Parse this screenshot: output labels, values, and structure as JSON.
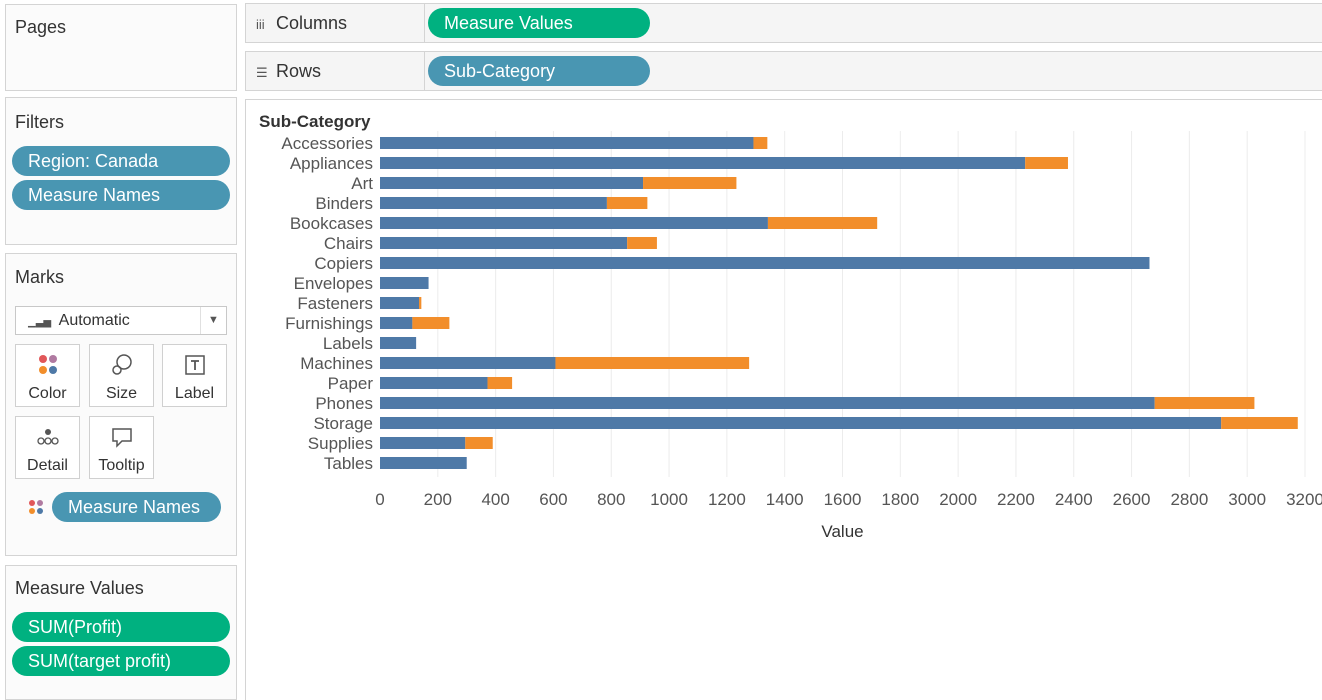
{
  "pages": {
    "title": "Pages"
  },
  "filters": {
    "title": "Filters",
    "items": [
      "Region: Canada",
      "Measure Names"
    ]
  },
  "marks": {
    "title": "Marks",
    "mark_type": "Automatic",
    "buttons": [
      "Color",
      "Size",
      "Label",
      "Detail",
      "Tooltip"
    ],
    "color_field": "Measure Names"
  },
  "measure_values": {
    "title": "Measure Values",
    "items": [
      "SUM(Profit)",
      "SUM(target profit)"
    ]
  },
  "shelves": {
    "columns": {
      "label": "Columns",
      "pill": "Measure Values"
    },
    "rows": {
      "label": "Rows",
      "pill": "Sub-Category"
    }
  },
  "colors": {
    "profit": "#4e79a7",
    "target": "#f28e2b",
    "green_pill": "#00b180",
    "blue_pill": "#4996b2"
  },
  "chart_data": {
    "type": "bar",
    "orientation": "horizontal",
    "stacked": true,
    "row_header": "Sub-Category",
    "categories": [
      "Accessories",
      "Appliances",
      "Art",
      "Binders",
      "Bookcases",
      "Chairs",
      "Copiers",
      "Envelopes",
      "Fasteners",
      "Furnishings",
      "Labels",
      "Machines",
      "Paper",
      "Phones",
      "Storage",
      "Supplies",
      "Tables"
    ],
    "series": [
      {
        "values": [
          1292,
          2232,
          910,
          785,
          1342,
          855,
          2662,
          168,
          135,
          112,
          125,
          607,
          372,
          2680,
          2910,
          295,
          300
        ]
      },
      {
        "values": [
          48,
          148,
          323,
          140,
          378,
          103,
          0,
          0,
          8,
          128,
          0,
          670,
          85,
          345,
          265,
          95,
          0
        ]
      }
    ],
    "xlabel": "Value",
    "xlim": [
      0,
      3200
    ],
    "xticks": [
      0,
      200,
      400,
      600,
      800,
      1000,
      1200,
      1400,
      1600,
      1800,
      2000,
      2200,
      2400,
      2600,
      2800,
      3000,
      3200
    ],
    "grid": "vertical"
  }
}
